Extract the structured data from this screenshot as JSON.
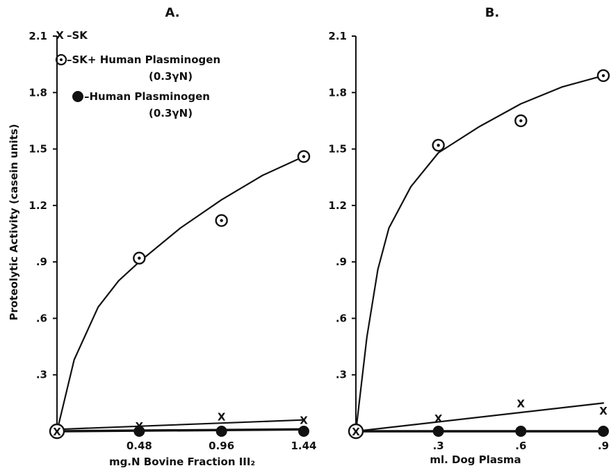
{
  "chart_data": [
    {
      "type": "scatter",
      "title": "A.",
      "xlabel": "mg.N Bovine Fraction III₂",
      "ylabel": "Proteolytic Activity (casein units)",
      "xlim": [
        0,
        1.44
      ],
      "ylim": [
        0,
        2.1
      ],
      "x_ticks": [
        "0.48",
        "0.96",
        "1.44"
      ],
      "y_ticks": [
        ".3",
        ".6",
        ".9",
        "1.2",
        "1.5",
        "1.8",
        "2.1"
      ],
      "legend": {
        "placement": "top-left",
        "entries": [
          {
            "marker": "x",
            "label": "–SK"
          },
          {
            "marker": "circle-dot",
            "label": "–SK+ Human Plasminogen",
            "sublabel": "(0.3γN)"
          },
          {
            "marker": "filled-circle",
            "label": "–Human Plasminogen",
            "sublabel": "(0.3γN)"
          }
        ]
      },
      "origin_marker": "X",
      "series": [
        {
          "name": "SK",
          "marker": "x",
          "x": [
            0.48,
            0.96,
            1.44
          ],
          "y": [
            0.03,
            0.08,
            0.06
          ]
        },
        {
          "name": "SK+ Human Plasminogen",
          "marker": "circle-dot",
          "x": [
            0.48,
            0.96,
            1.44
          ],
          "y": [
            0.92,
            1.12,
            1.46
          ]
        },
        {
          "name": "Human Plasminogen",
          "marker": "filled-circle",
          "x": [
            0.48,
            0.96,
            1.44
          ],
          "y": [
            0.0,
            0.0,
            0.0
          ]
        }
      ],
      "curves": [
        {
          "series": "SK+ Human Plasminogen",
          "x": [
            0,
            0.1,
            0.24,
            0.36,
            0.48,
            0.72,
            0.96,
            1.2,
            1.44
          ],
          "y": [
            0,
            0.38,
            0.66,
            0.8,
            0.9,
            1.08,
            1.23,
            1.36,
            1.46
          ]
        },
        {
          "series": "SK",
          "x": [
            0,
            1.44
          ],
          "y": [
            0.01,
            0.06
          ]
        },
        {
          "series": "Human Plasminogen",
          "x": [
            0,
            1.44
          ],
          "y": [
            0.0,
            0.01
          ]
        }
      ]
    },
    {
      "type": "scatter",
      "title": "B.",
      "xlabel": "ml. Dog Plasma",
      "ylabel": "",
      "xlim": [
        0,
        0.9
      ],
      "ylim": [
        0,
        2.1
      ],
      "x_ticks": [
        ".3",
        ".6",
        ".9"
      ],
      "y_ticks": [
        ".3",
        ".6",
        ".9",
        "1.2",
        "1.5",
        "1.8",
        "2.1"
      ],
      "origin_marker": "X",
      "series": [
        {
          "name": "SK",
          "marker": "x",
          "x": [
            0.3,
            0.6,
            0.9
          ],
          "y": [
            0.07,
            0.15,
            0.11
          ]
        },
        {
          "name": "SK+ Human Plasminogen",
          "marker": "circle-dot",
          "x": [
            0.3,
            0.6,
            0.9
          ],
          "y": [
            1.52,
            1.65,
            1.89
          ]
        },
        {
          "name": "Human Plasminogen",
          "marker": "filled-circle",
          "x": [
            0.3,
            0.6,
            0.9
          ],
          "y": [
            0.0,
            0.0,
            0.0
          ]
        }
      ],
      "curves": [
        {
          "series": "SK+ Human Plasminogen",
          "x": [
            0,
            0.04,
            0.08,
            0.12,
            0.2,
            0.3,
            0.45,
            0.6,
            0.75,
            0.9
          ],
          "y": [
            0,
            0.5,
            0.86,
            1.08,
            1.3,
            1.48,
            1.62,
            1.74,
            1.83,
            1.89
          ]
        },
        {
          "series": "SK",
          "x": [
            0,
            0.9
          ],
          "y": [
            0.0,
            0.15
          ]
        },
        {
          "series": "Human Plasminogen",
          "x": [
            0,
            0.9
          ],
          "y": [
            0.0,
            0.0
          ]
        }
      ]
    }
  ]
}
